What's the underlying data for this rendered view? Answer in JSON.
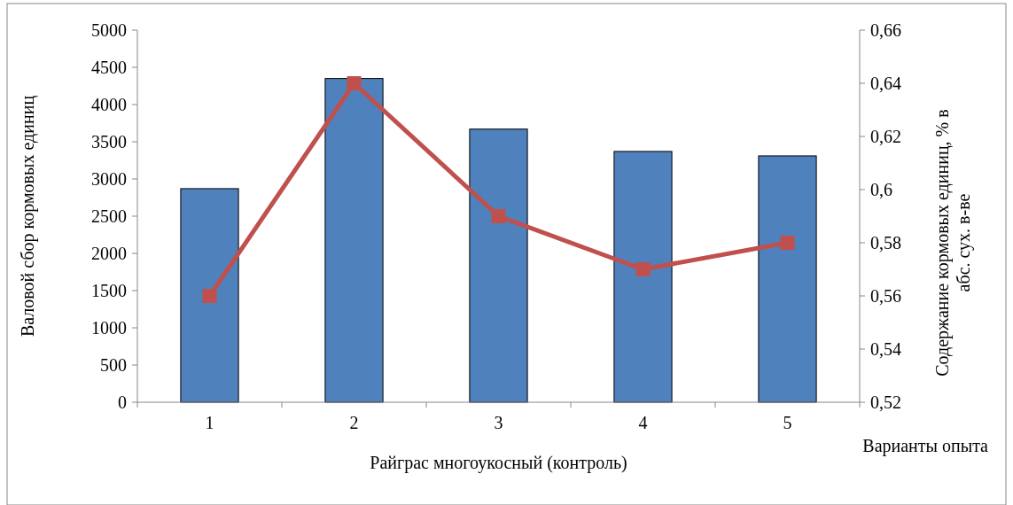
{
  "chart_data": {
    "type": "bar",
    "categories": [
      "1",
      "2",
      "3",
      "4",
      "5"
    ],
    "series": [
      {
        "color": "#4f81bd",
        "values": [
          2870,
          4350,
          3670,
          3370,
          3310
        ]
      },
      {
        "type": "line",
        "axis": "y2",
        "color": "#c0504d",
        "values": [
          0.56,
          0.64,
          0.59,
          0.57,
          0.58
        ]
      }
    ],
    "ylim": [
      0,
      5000
    ],
    "yticks": [
      0,
      500,
      1000,
      1500,
      2000,
      2500,
      3000,
      3500,
      4000,
      4500,
      5000
    ],
    "y2lim": [
      0.52,
      0.66
    ],
    "y2ticks": [
      {
        "value": 0.52,
        "label": "0,52"
      },
      {
        "value": 0.54,
        "label": "0,54"
      },
      {
        "value": 0.56,
        "label": "0,56"
      },
      {
        "value": 0.58,
        "label": "0,58"
      },
      {
        "value": 0.6,
        "label": "0,6"
      },
      {
        "value": 0.62,
        "label": "0,62"
      },
      {
        "value": 0.64,
        "label": "0,64"
      },
      {
        "value": 0.66,
        "label": "0,66"
      }
    ],
    "ylabel": "Валовой сбор кормовых единиц",
    "y2label": "Содержание кормовых единиц, % в абс. сух. в-ве",
    "xlabel": "Райграс многоукосный (контроль)",
    "annotations": [
      "Варианты опыта"
    ],
    "marker": "square",
    "grid": false
  }
}
